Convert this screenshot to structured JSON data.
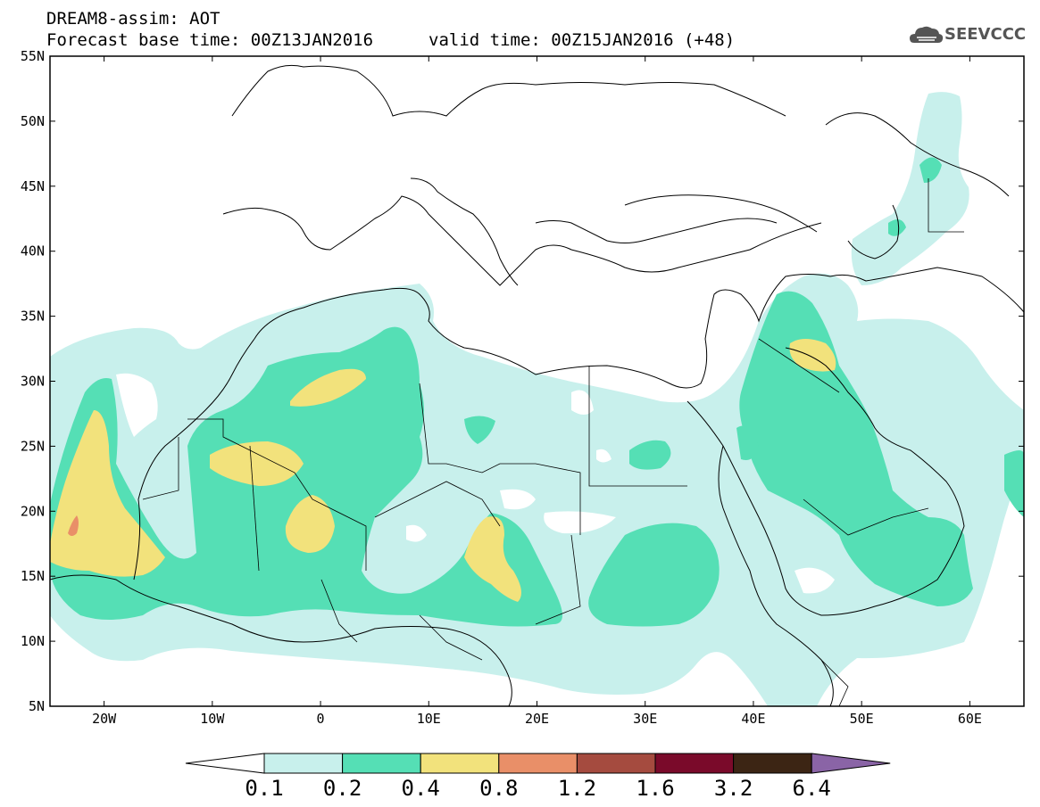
{
  "header": {
    "line1": "DREAM8-assim: AOT",
    "line2_base": "Forecast base time: 00Z13JAN2016",
    "line2_valid": "valid time: 00Z15JAN2016 (+48)"
  },
  "logo": {
    "text": "SEEVCCC",
    "icon": "cloud-logo-icon"
  },
  "axes": {
    "lat_labels": [
      "55N",
      "50N",
      "45N",
      "40N",
      "35N",
      "30N",
      "25N",
      "20N",
      "15N",
      "10N",
      "5N"
    ],
    "lon_labels": [
      "20W",
      "10W",
      "0",
      "10E",
      "20E",
      "30E",
      "40E",
      "50E",
      "60E"
    ],
    "lat_range": [
      5,
      55
    ],
    "lon_range": [
      -25,
      65
    ]
  },
  "colorbar": {
    "labels": [
      "0.1",
      "0.2",
      "0.4",
      "0.8",
      "1.2",
      "1.6",
      "3.2",
      "6.4"
    ],
    "colors": [
      "#ffffff",
      "#c8f0ec",
      "#55dfb5",
      "#f2e27c",
      "#e98f68",
      "#a54b3f",
      "#7a0a2a",
      "#3c2514",
      "#8a64a6"
    ]
  },
  "legend_levels": {
    "under_0.1": "#ffffff",
    "0.1-0.2": "#c8f0ec",
    "0.2-0.4": "#55dfb5",
    "0.4-0.8": "#f2e27c",
    "0.8-1.2": "#e98f68"
  }
}
